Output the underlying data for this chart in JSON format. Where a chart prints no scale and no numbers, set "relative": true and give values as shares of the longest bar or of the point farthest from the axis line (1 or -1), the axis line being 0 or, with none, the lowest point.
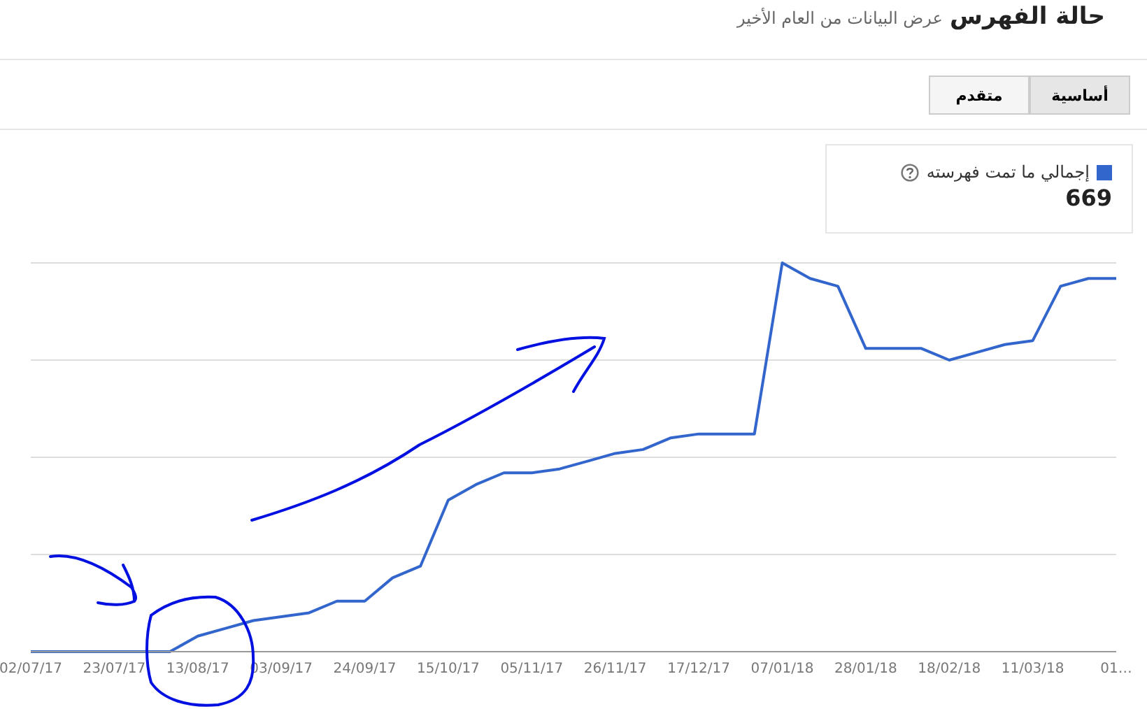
{
  "chart_data": {
    "type": "line",
    "title": "حالة الفهرس",
    "subtitle": "عرض البيانات من العام الأخير",
    "relative": true,
    "grid": "y",
    "legend": "top right",
    "x": [
      "2017-07-02",
      "2017-07-09",
      "2017-07-16",
      "2017-07-23",
      "2017-07-30",
      "2017-08-06",
      "2017-08-13",
      "2017-08-20",
      "2017-08-27",
      "2017-09-03",
      "2017-09-10",
      "2017-09-17",
      "2017-09-24",
      "2017-10-01",
      "2017-10-08",
      "2017-10-15",
      "2017-10-22",
      "2017-10-29",
      "2017-11-05",
      "2017-11-12",
      "2017-11-19",
      "2017-11-26",
      "2017-12-03",
      "2017-12-10",
      "2017-12-17",
      "2017-12-24",
      "2017-12-31",
      "2018-01-07",
      "2018-01-14",
      "2018-01-21",
      "2018-01-28",
      "2018-02-04",
      "2018-02-11",
      "2018-02-18",
      "2018-02-25",
      "2018-03-04",
      "2018-03-11",
      "2018-03-18",
      "2018-03-25",
      "2018-04-01"
    ],
    "xlim": [
      "2017-07-02",
      "2018-04-01"
    ],
    "xticks": [
      {
        "value": "2017-07-02",
        "label": "02/07/17"
      },
      {
        "value": "2017-07-23",
        "label": "23/07/17"
      },
      {
        "value": "2017-08-13",
        "label": "13/08/17"
      },
      {
        "value": "2017-09-03",
        "label": "03/09/17"
      },
      {
        "value": "2017-09-24",
        "label": "24/09/17"
      },
      {
        "value": "2017-10-15",
        "label": "15/10/17"
      },
      {
        "value": "2017-11-05",
        "label": "05/11/17"
      },
      {
        "value": "2017-11-26",
        "label": "26/11/17"
      },
      {
        "value": "2017-12-17",
        "label": "17/12/17"
      },
      {
        "value": "2018-01-07",
        "label": "07/01/18"
      },
      {
        "value": "2018-01-28",
        "label": "28/01/18"
      },
      {
        "value": "2018-02-18",
        "label": "18/02/18"
      },
      {
        "value": "2018-03-11",
        "label": "11/03/18"
      },
      {
        "value": "2018-04-01",
        "label": "01…"
      }
    ],
    "series": [
      {
        "name": "إجمالي ما تمت فهرسته",
        "color": "#3366cc",
        "values": [
          0,
          0,
          0,
          0,
          0,
          0,
          0.04,
          0.06,
          0.08,
          0.09,
          0.1,
          0.13,
          0.13,
          0.19,
          0.22,
          0.39,
          0.43,
          0.46,
          0.46,
          0.47,
          0.49,
          0.51,
          0.52,
          0.55,
          0.56,
          0.56,
          0.56,
          1,
          0.96,
          0.94,
          0.78,
          0.78,
          0.78,
          0.75,
          0.77,
          0.79,
          0.8,
          0.94,
          0.96,
          0.96
        ]
      }
    ],
    "annotations": [
      "669",
      "أساسية",
      "متقدم"
    ]
  }
}
